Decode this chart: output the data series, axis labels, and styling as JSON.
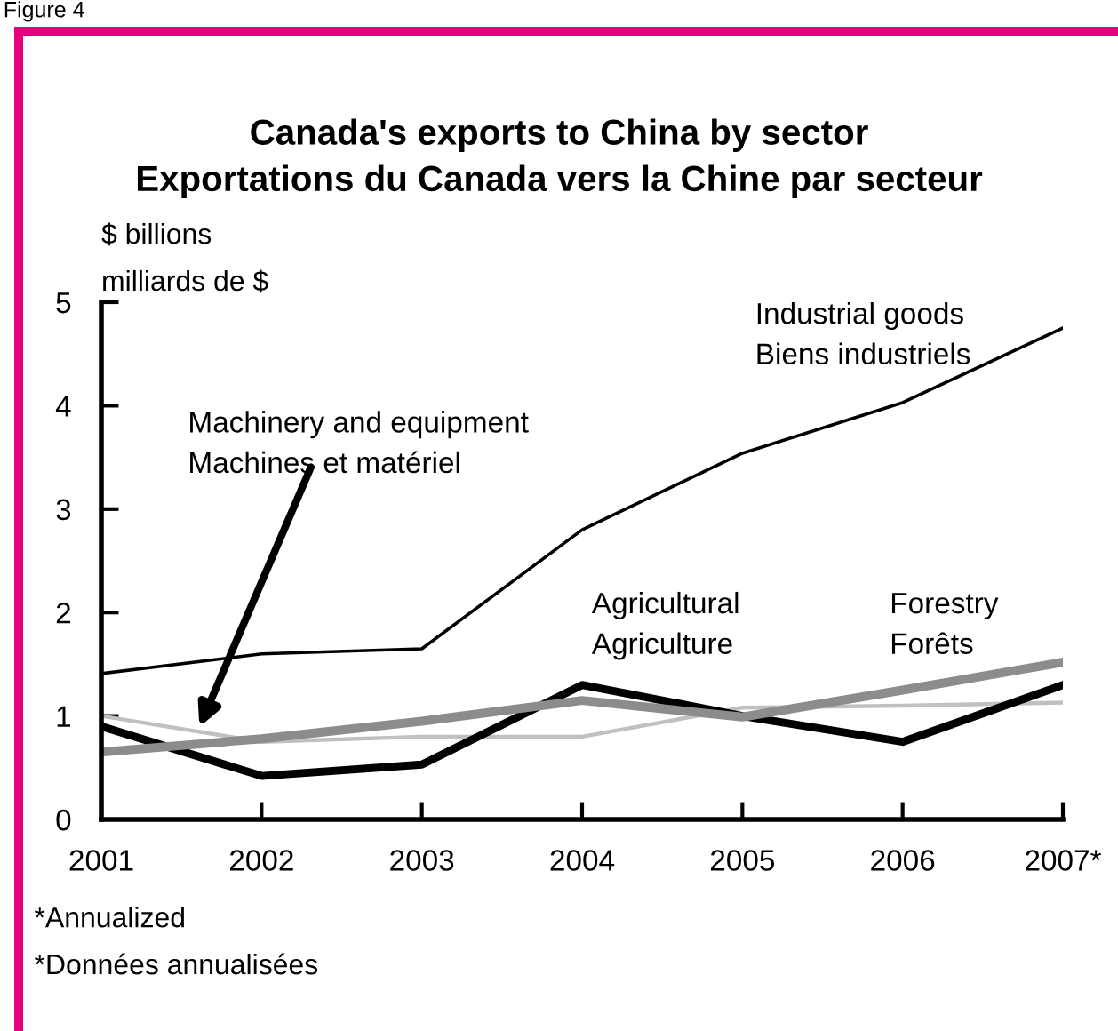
{
  "chart_data": {
    "type": "line",
    "title": "Canada's exports to China by sector\nExportations du Canada vers la Chine par secteur",
    "ylabel": "$ billions\nmilliards de $",
    "categories": [
      "2001",
      "2002",
      "2003",
      "2004",
      "2005",
      "2006",
      "2007*"
    ],
    "series": [
      {
        "name": "Industrial goods\nBiens industriels",
        "color": "#000000",
        "values": [
          1.41,
          1.6,
          1.65,
          2.8,
          3.54,
          4.03,
          4.75
        ]
      },
      {
        "name": "Machinery and equipment\nMachines et matériel",
        "color": "#c0c0c0",
        "values": [
          1.0,
          0.75,
          0.8,
          0.8,
          1.08,
          1.1,
          1.13
        ]
      },
      {
        "name": "Agricultural\nAgriculture",
        "color": "#000000",
        "values": [
          0.9,
          0.42,
          0.53,
          1.3,
          1.0,
          0.75,
          1.3
        ]
      },
      {
        "name": "Forestry\nForêts",
        "color": "#8c8c8c",
        "values": [
          0.65,
          0.78,
          0.95,
          1.15,
          0.99,
          1.25,
          1.52
        ]
      }
    ],
    "ylim": [
      0,
      5
    ],
    "yticks": [
      0,
      1,
      2,
      3,
      4,
      5
    ],
    "grid": false,
    "legend": false,
    "marker": "none",
    "line_style": "solid",
    "annotations": [
      "Figure 4",
      "*Annualized\n*Données annualisées"
    ]
  }
}
